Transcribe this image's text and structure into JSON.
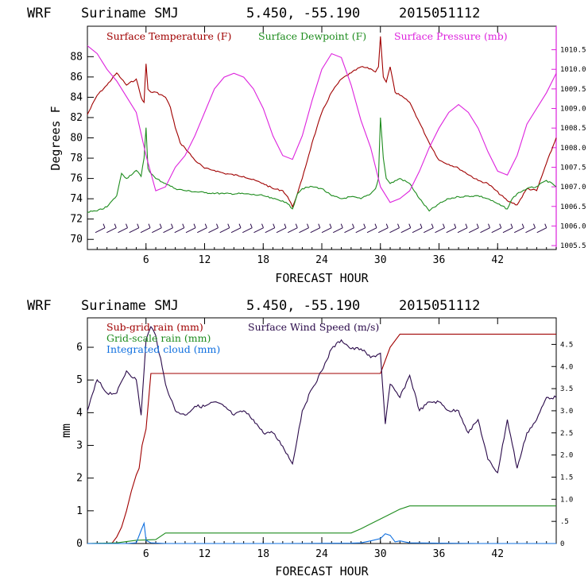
{
  "header": {
    "model": "WRF",
    "location": "Suriname SMJ",
    "coords": "5.450, -55.190",
    "init_time": "2015051112"
  },
  "colors": {
    "red": "#a00000",
    "green": "#1e8c1e",
    "magenta": "#dd22dd",
    "purple": "#2a0a4a",
    "blue": "#1070e0",
    "barb": "#2a0a4a"
  },
  "chart_data": [
    {
      "type": "line",
      "xlabel": "FORECAST HOUR",
      "ylabel": "Degrees F",
      "xlim": [
        0,
        48
      ],
      "ylim": [
        69,
        91
      ],
      "y2lim": [
        1005.4,
        1011.1
      ],
      "xticks": [
        6,
        12,
        18,
        24,
        30,
        36,
        42
      ],
      "xtick_labels": [
        "6",
        "12",
        "18",
        "24",
        "30",
        "36",
        "42"
      ],
      "yticks": [
        70,
        72,
        74,
        76,
        78,
        80,
        82,
        84,
        86,
        88
      ],
      "ytick_labels": [
        "70",
        "72",
        "74",
        "76",
        "78",
        "80",
        "82",
        "84",
        "86",
        "88"
      ],
      "y2ticks": [
        1005.5,
        1006.0,
        1006.5,
        1007.0,
        1007.5,
        1008.0,
        1008.5,
        1009.0,
        1009.5,
        1010.0,
        1010.5
      ],
      "y2tick_labels": [
        "1005.5",
        "1006.0",
        "1006.5",
        "1007.0",
        "1007.5",
        "1008.0",
        "1008.5",
        "1009.0",
        "1009.5",
        "1010.0",
        "1010.5"
      ],
      "legend": [
        "Surface Temperature (F)",
        "Surface Dewpoint (F)",
        "Surface Pressure (mb)"
      ],
      "legend_placement": "top-left",
      "wind_barbs": {
        "y": 70.9,
        "count": 40,
        "note_visible": false
      },
      "series": [
        {
          "name": "Surface Temperature (F)",
          "axis": "left",
          "x": [
            0,
            1,
            2,
            3,
            3.5,
            4,
            5,
            5.5,
            5.8,
            6,
            6.2,
            6.5,
            7,
            8,
            8.5,
            9,
            9.5,
            10,
            11,
            12,
            13,
            14,
            16,
            18,
            19,
            20,
            20.5,
            21,
            21.5,
            22,
            23,
            24,
            25,
            26,
            27,
            28,
            29,
            29.5,
            29.8,
            30,
            30.3,
            30.6,
            31,
            31.5,
            32,
            33,
            34,
            35,
            36,
            38,
            40,
            41,
            43,
            44,
            45,
            46,
            47,
            48
          ],
          "y": [
            82.3,
            84.2,
            85.2,
            86.4,
            85.8,
            85.2,
            85.8,
            84.0,
            83.5,
            87.3,
            84.8,
            84.5,
            84.5,
            84.0,
            83.0,
            81.0,
            79.5,
            79.0,
            77.8,
            77.0,
            76.8,
            76.5,
            76.2,
            75.5,
            75.0,
            74.8,
            74.2,
            73.2,
            74.5,
            76.0,
            79.5,
            82.5,
            84.5,
            85.8,
            86.4,
            87.0,
            86.8,
            86.5,
            87.0,
            90.0,
            86.0,
            85.5,
            87.0,
            84.5,
            84.2,
            83.5,
            81.5,
            79.5,
            77.8,
            77.0,
            75.8,
            75.5,
            73.8,
            73.4,
            75.0,
            74.8,
            77.5,
            80.0
          ]
        },
        {
          "name": "Surface Dewpoint (F)",
          "axis": "left",
          "x": [
            0,
            1,
            2,
            3,
            3.5,
            4,
            5,
            5.5,
            5.8,
            6,
            6.2,
            6.5,
            7,
            8,
            9,
            10,
            12,
            14,
            16,
            18,
            19,
            20,
            20.5,
            21,
            21.5,
            22,
            23,
            24,
            25,
            26,
            27,
            28,
            29,
            29.5,
            29.8,
            30,
            30.3,
            30.6,
            31,
            32,
            33,
            34,
            35,
            36,
            37,
            38,
            40,
            41,
            42,
            43,
            43.5,
            44,
            45,
            46,
            47,
            48
          ],
          "y": [
            72.7,
            72.8,
            73.2,
            74.3,
            76.5,
            76.0,
            76.8,
            76.2,
            78.0,
            81.0,
            77.0,
            76.5,
            76.0,
            75.5,
            75.0,
            74.8,
            74.6,
            74.5,
            74.5,
            74.3,
            74.0,
            73.8,
            73.5,
            73.0,
            74.5,
            75.0,
            75.2,
            75.0,
            74.3,
            74.0,
            74.2,
            74.0,
            74.5,
            75.0,
            76.0,
            82.0,
            78.0,
            76.0,
            75.5,
            76.0,
            75.5,
            74.0,
            72.8,
            73.5,
            74.0,
            74.2,
            74.3,
            74.0,
            73.5,
            73.0,
            74.0,
            74.5,
            75.0,
            75.2,
            75.8,
            75.2
          ]
        },
        {
          "name": "Surface Pressure (mb)",
          "axis": "right",
          "x": [
            0,
            1,
            2,
            3,
            4,
            5,
            6,
            7,
            8,
            9,
            10,
            11,
            12,
            13,
            14,
            15,
            16,
            17,
            18,
            19,
            20,
            21,
            22,
            23,
            24,
            25,
            26,
            27,
            28,
            29,
            30,
            31,
            32,
            33,
            34,
            35,
            36,
            37,
            38,
            39,
            40,
            41,
            42,
            43,
            44,
            45,
            46,
            47,
            48
          ],
          "y": [
            1010.6,
            1010.4,
            1010.0,
            1009.7,
            1009.3,
            1008.9,
            1007.8,
            1006.9,
            1007.0,
            1007.5,
            1007.8,
            1008.3,
            1008.9,
            1009.5,
            1009.8,
            1009.9,
            1009.8,
            1009.5,
            1009.0,
            1008.3,
            1007.8,
            1007.7,
            1008.3,
            1009.2,
            1010.0,
            1010.4,
            1010.3,
            1009.6,
            1008.7,
            1008.0,
            1007.0,
            1006.6,
            1006.7,
            1006.9,
            1007.4,
            1008.0,
            1008.5,
            1008.9,
            1009.1,
            1008.9,
            1008.5,
            1007.9,
            1007.4,
            1007.3,
            1007.8,
            1008.6,
            1009.0,
            1009.4,
            1009.9
          ]
        }
      ]
    },
    {
      "type": "line",
      "xlabel": "FORECAST HOUR",
      "ylabel": "mm",
      "xlim": [
        0,
        48
      ],
      "ylim": [
        0,
        6.9
      ],
      "y2lim": [
        0,
        5.1
      ],
      "xticks": [
        6,
        12,
        18,
        24,
        30,
        36,
        42
      ],
      "xtick_labels": [
        "6",
        "12",
        "18",
        "24",
        "30",
        "36",
        "42"
      ],
      "yticks": [
        0,
        1,
        2,
        3,
        4,
        5,
        6
      ],
      "ytick_labels": [
        "0",
        "1",
        "2",
        "3",
        "4",
        "5",
        "6"
      ],
      "y2ticks": [
        0,
        0.5,
        1.0,
        1.5,
        2.0,
        2.5,
        3.0,
        3.5,
        4.0,
        4.5
      ],
      "y2tick_labels": [
        "0",
        ".5",
        "1.0",
        "1.5",
        "2.0",
        "2.5",
        "3.0",
        "3.5",
        "4.0",
        "4.5"
      ],
      "legend": [
        "Sub-grid rain (mm)",
        "Surface Wind Speed (m/s)",
        "Grid-scale rain (mm)",
        "Integrated cloud (mm)"
      ],
      "legend_placement": "top-left",
      "series": [
        {
          "name": "Sub-grid rain (mm)",
          "axis": "left",
          "x": [
            0,
            2.5,
            3,
            3.5,
            4,
            4.5,
            5,
            5.3,
            5.6,
            6,
            6.3,
            6.5,
            7,
            10,
            20,
            29,
            30,
            31,
            32,
            33,
            40,
            48
          ],
          "y": [
            0,
            0,
            0.2,
            0.5,
            1.0,
            1.6,
            2.1,
            2.3,
            3.0,
            3.5,
            4.5,
            5.2,
            5.2,
            5.2,
            5.2,
            5.2,
            5.2,
            6.0,
            6.4,
            6.4,
            6.4,
            6.4
          ]
        },
        {
          "name": "Grid-scale rain (mm)",
          "axis": "left",
          "x": [
            0,
            3,
            5,
            7,
            8,
            10,
            20,
            27,
            28,
            29,
            30,
            31,
            32,
            33,
            40,
            48
          ],
          "y": [
            0,
            0.02,
            0.1,
            0.12,
            0.32,
            0.32,
            0.32,
            0.32,
            0.45,
            0.6,
            0.75,
            0.9,
            1.05,
            1.15,
            1.15,
            1.15
          ]
        },
        {
          "name": "Integrated cloud (mm)",
          "axis": "left",
          "x": [
            0,
            4,
            5,
            5.5,
            5.8,
            6,
            6.5,
            8,
            20,
            27,
            28,
            29,
            30,
            30.5,
            31,
            31.5,
            32,
            33,
            40,
            48
          ],
          "y": [
            0,
            0,
            0.02,
            0.4,
            0.62,
            0.1,
            0.02,
            0,
            0,
            0.01,
            0.02,
            0.08,
            0.15,
            0.3,
            0.25,
            0.05,
            0.08,
            0.02,
            0,
            0
          ]
        },
        {
          "name": "Surface Wind Speed (m/s)",
          "axis": "right",
          "x": [
            0,
            1,
            2,
            3,
            4,
            5,
            5.5,
            6,
            6.5,
            7,
            8,
            9,
            10,
            11,
            12,
            13,
            14,
            15,
            16,
            17,
            18,
            19,
            20,
            21,
            22,
            23,
            24,
            25,
            26,
            27,
            28,
            29,
            30,
            30.5,
            31,
            32,
            33,
            34,
            35,
            36,
            37,
            38,
            39,
            40,
            41,
            42,
            43,
            44,
            45,
            46,
            47,
            48
          ],
          "y": [
            3.0,
            3.7,
            3.4,
            3.4,
            3.9,
            3.7,
            2.9,
            4.6,
            4.9,
            4.7,
            3.6,
            3.0,
            2.9,
            3.1,
            3.1,
            3.2,
            3.1,
            2.9,
            3.0,
            2.8,
            2.5,
            2.5,
            2.2,
            1.8,
            3.0,
            3.5,
            3.9,
            4.4,
            4.6,
            4.4,
            4.4,
            4.2,
            4.3,
            2.7,
            3.6,
            3.3,
            3.8,
            3.0,
            3.2,
            3.2,
            3.0,
            3.0,
            2.5,
            2.8,
            1.9,
            1.6,
            2.8,
            1.7,
            2.5,
            2.8,
            3.3,
            3.3
          ]
        }
      ]
    }
  ]
}
